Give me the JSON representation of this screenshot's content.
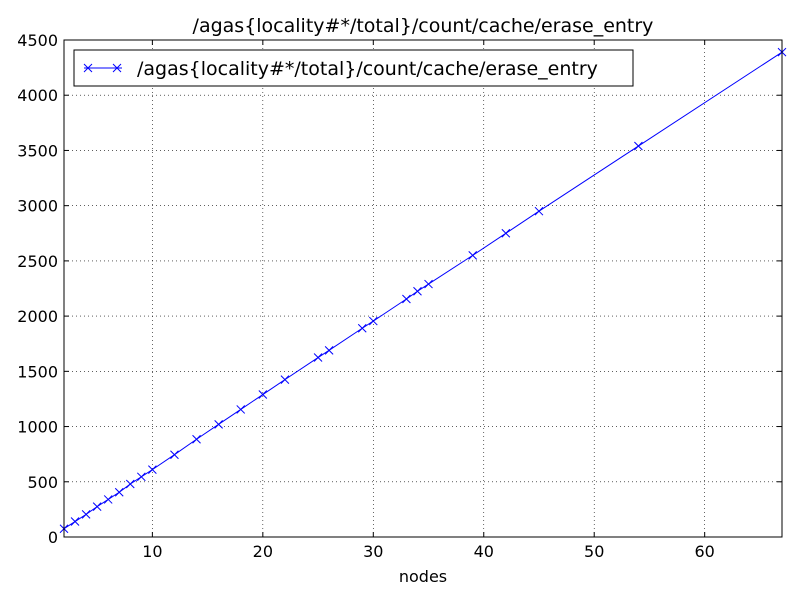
{
  "chart_data": {
    "type": "line",
    "title": "/agas{locality#*/total}/count/cache/erase_entry",
    "xlabel": "nodes",
    "ylabel": "",
    "xlim": [
      2,
      67
    ],
    "ylim": [
      0,
      4500
    ],
    "xticks": [
      10,
      20,
      30,
      40,
      50,
      60
    ],
    "xtick_labels": [
      "10",
      "20",
      "30",
      "40",
      "50",
      "60"
    ],
    "yticks": [
      0,
      500,
      1000,
      1500,
      2000,
      2500,
      3000,
      3500,
      4000,
      4500
    ],
    "ytick_labels": [
      "0",
      "500",
      "1000",
      "1500",
      "2000",
      "2500",
      "3000",
      "3500",
      "4000",
      "4500"
    ],
    "grid": true,
    "legend_position": "top-left",
    "series": [
      {
        "name": "/agas{locality#*/total}/count/cache/erase_entry",
        "color": "#0000ff",
        "marker": "x",
        "x": [
          2,
          3,
          4,
          5,
          6,
          7,
          8,
          9,
          10,
          12,
          14,
          16,
          18,
          20,
          22,
          25,
          26,
          29,
          30,
          33,
          34,
          35,
          39,
          42,
          45,
          54,
          67
        ],
        "y": [
          75,
          140,
          205,
          275,
          340,
          405,
          480,
          545,
          610,
          745,
          885,
          1020,
          1155,
          1290,
          1425,
          1625,
          1690,
          1890,
          1955,
          2155,
          2225,
          2290,
          2550,
          2750,
          2950,
          3540,
          4390
        ]
      }
    ]
  }
}
